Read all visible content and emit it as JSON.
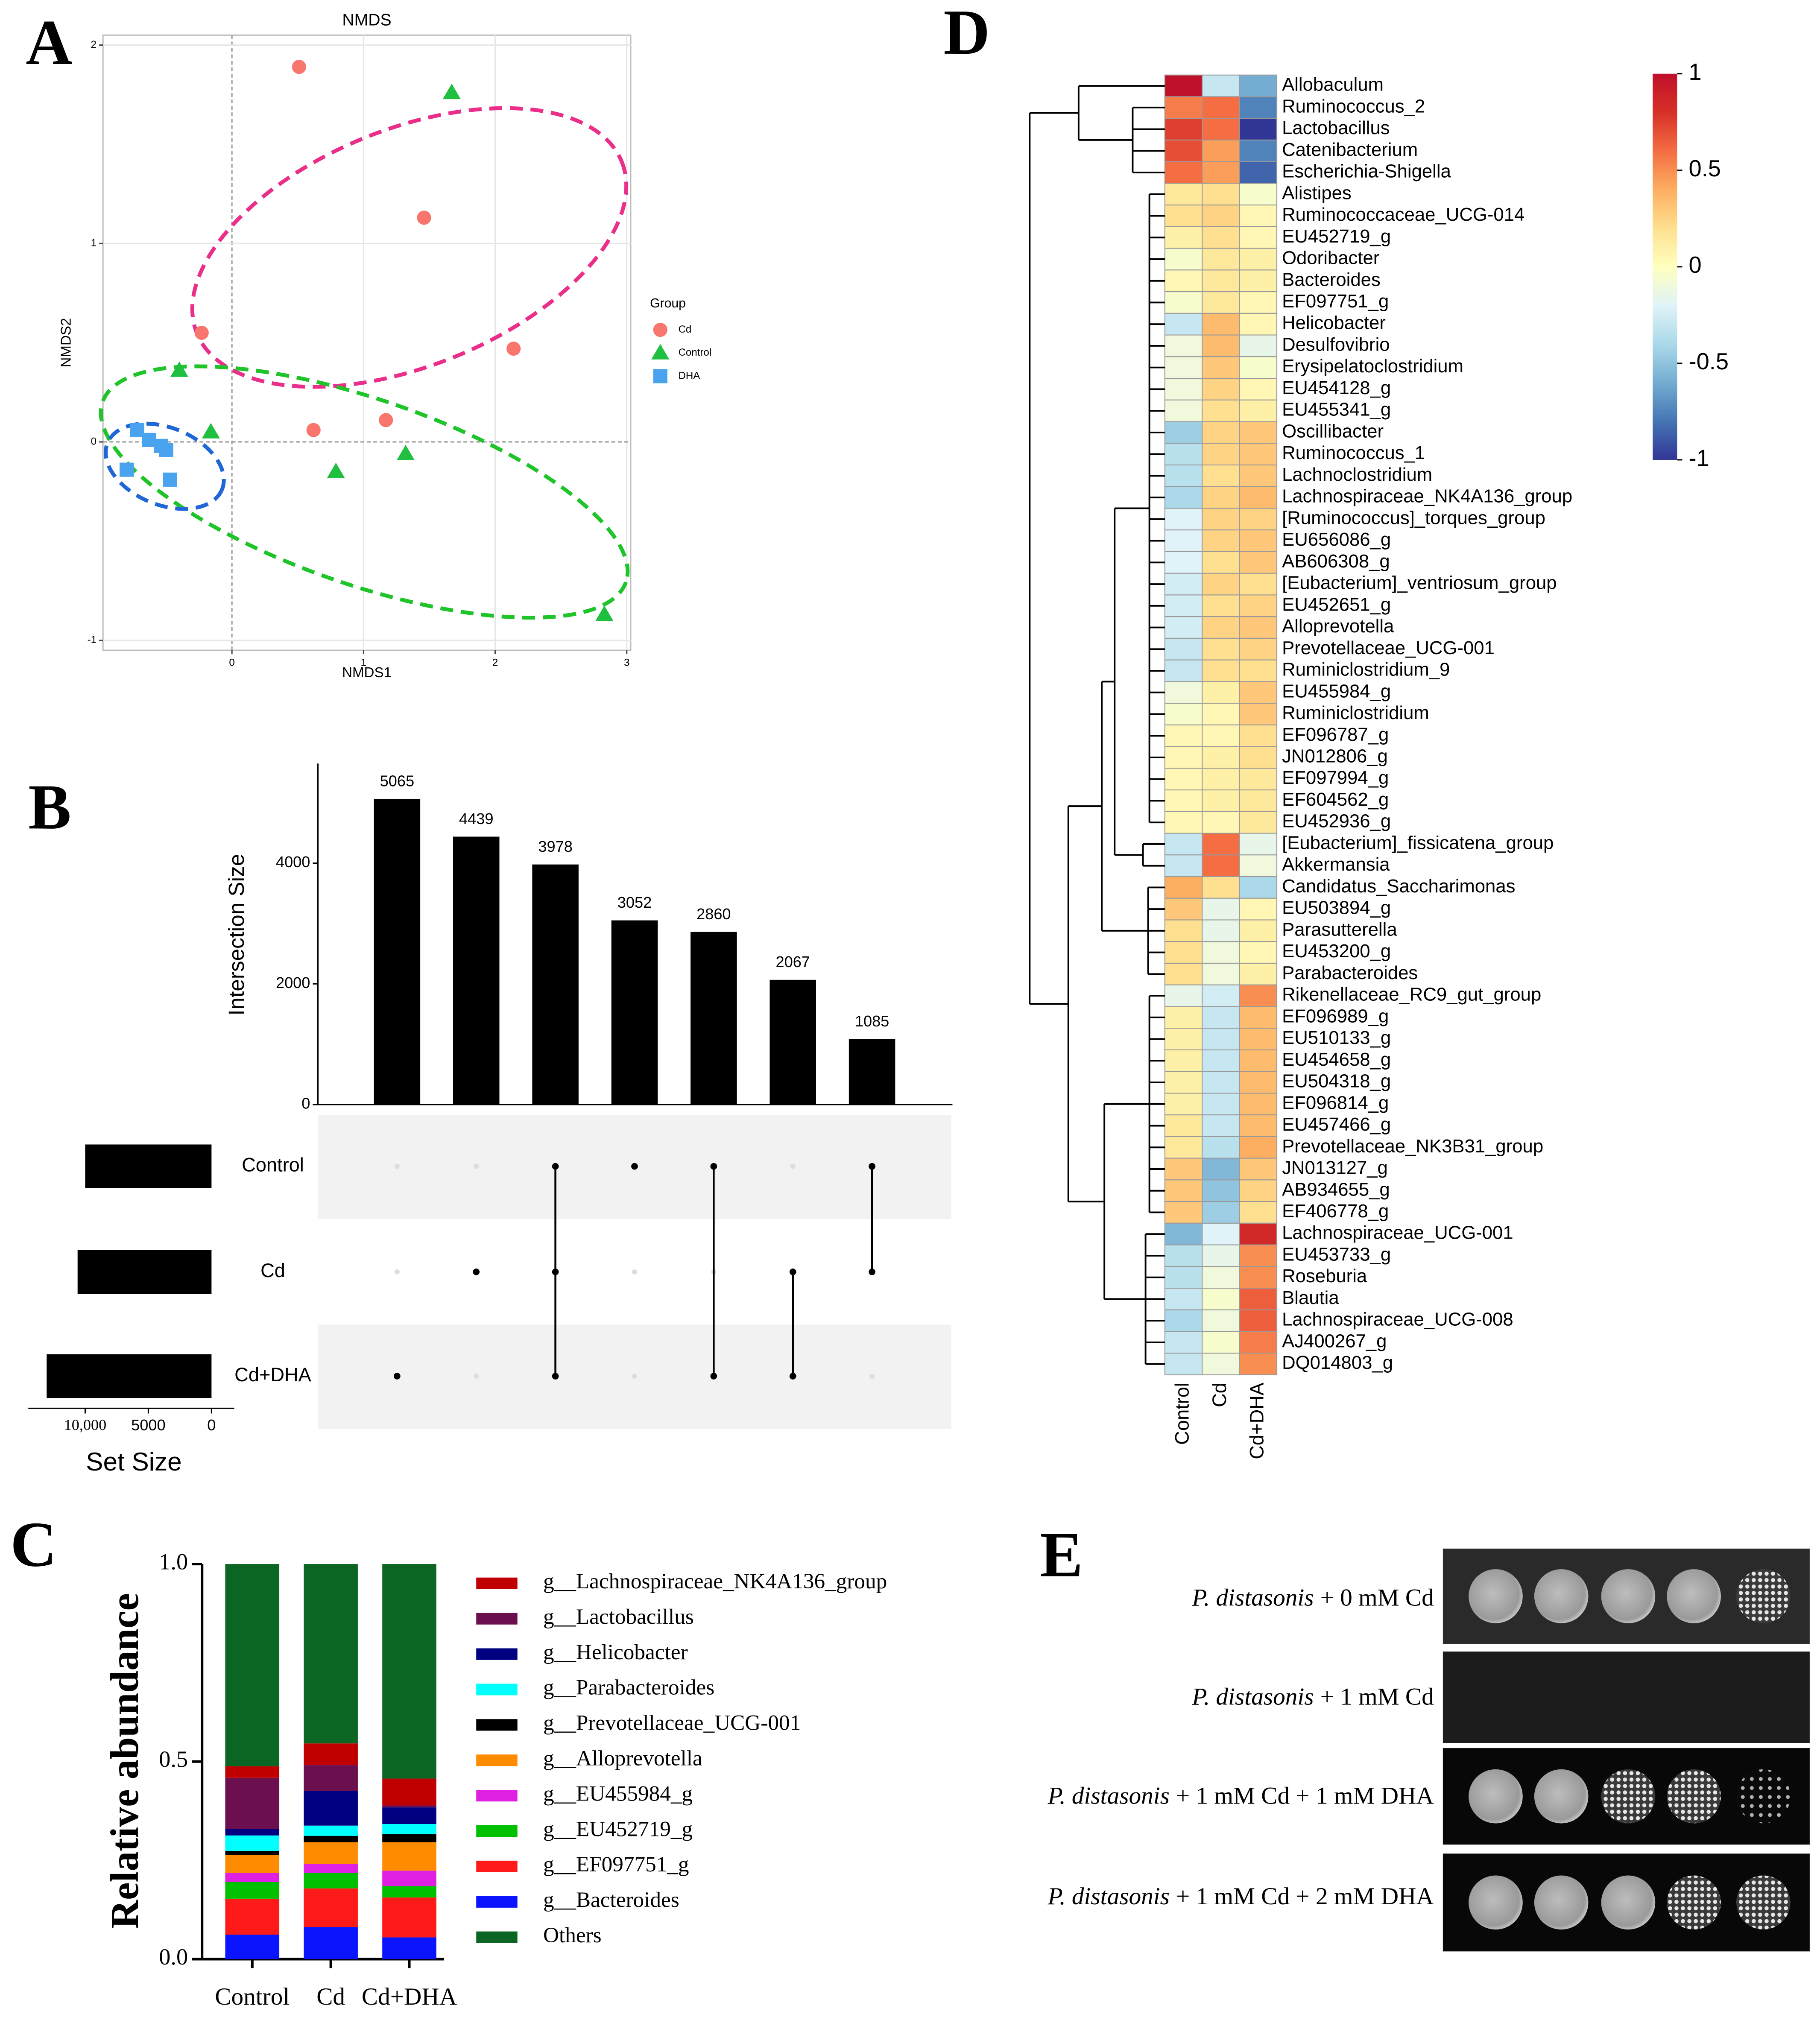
{
  "chart_data": [
    {
      "type": "scatter",
      "panel": "A",
      "title": "NMDS",
      "xlabel": "NMDS1",
      "ylabel": "NMDS2",
      "legend_title": "Group",
      "xlim": [
        -0.98,
        3.03
      ],
      "ylim": [
        -1.05,
        2.05
      ],
      "xticks": [
        0,
        1,
        2,
        3
      ],
      "yticks": [
        -1,
        0,
        1,
        2
      ],
      "grid": true,
      "series": [
        {
          "name": "Cd",
          "color": "#f8766d",
          "marker": "circle",
          "x": [
            0.51,
            1.46,
            -0.23,
            2.14,
            0.62,
            1.17
          ],
          "y": [
            1.89,
            1.13,
            0.55,
            0.47,
            0.06,
            0.11
          ]
        },
        {
          "name": "Control",
          "color": "#1fbf3f",
          "marker": "triangle",
          "x": [
            1.67,
            -0.4,
            -0.16,
            0.79,
            1.32,
            2.83
          ],
          "y": [
            1.76,
            0.36,
            0.05,
            -0.15,
            -0.06,
            -0.87
          ]
        },
        {
          "name": "DHA",
          "color": "#4aa3ee",
          "marker": "square",
          "x": [
            -0.72,
            -0.63,
            -0.54,
            -0.5,
            -0.8,
            -0.47
          ],
          "y": [
            0.06,
            0.01,
            -0.02,
            -0.04,
            -0.14,
            -0.19
          ]
        }
      ]
    },
    {
      "type": "upset",
      "panel": "B",
      "ylabel": "Intersection Size",
      "color": "#000000",
      "values": [
        5065,
        4439,
        3978,
        3052,
        2860,
        2067,
        1085
      ],
      "ylim": [
        0,
        5650
      ],
      "yticks": [
        0,
        2000,
        4000
      ],
      "sets": [
        "Control",
        "Cd",
        "Cd+DHA"
      ],
      "intersections": [
        [
          2
        ],
        [
          1
        ],
        [
          0,
          1,
          2
        ],
        [
          0
        ],
        [
          0,
          2
        ],
        [
          1,
          2
        ],
        [
          0,
          1
        ]
      ],
      "set_sizes": [
        10000,
        10600,
        13050
      ],
      "set_size_label": "Set Size",
      "set_size_lim": [
        -1800,
        14500
      ],
      "set_size_ticks": [
        {
          "value": 10000,
          "label": "10,000"
        },
        5000,
        0
      ]
    },
    {
      "type": "stacked_bar",
      "panel": "C",
      "ylabel": "Relative abundance",
      "categories": [
        "Control",
        "Cd",
        "Cd+DHA"
      ],
      "ylim": [
        0,
        1
      ],
      "yticks": [
        {
          "value": 0,
          "label": "0.0"
        },
        0.5,
        {
          "value": 1,
          "label": "1.0"
        }
      ],
      "series": [
        {
          "name": "g__Lachnospiraceae_NK4A136_group",
          "color": "#c00000",
          "values": [
            0.029,
            0.055,
            0.068
          ]
        },
        {
          "name": "g__Lactobacillus",
          "color": "#6b0f4f",
          "values": [
            0.13,
            0.065,
            0.005
          ]
        },
        {
          "name": "g__Helicobacter",
          "color": "#000080",
          "values": [
            0.016,
            0.088,
            0.042
          ]
        },
        {
          "name": "g__Parabacteroides",
          "color": "#00ffff",
          "values": [
            0.039,
            0.026,
            0.026
          ]
        },
        {
          "name": "g__Prevotellaceae_UCG-001",
          "color": "#000000",
          "values": [
            0.01,
            0.016,
            0.02
          ]
        },
        {
          "name": "g__Alloprevotella",
          "color": "#ff8c00",
          "values": [
            0.046,
            0.055,
            0.072
          ]
        },
        {
          "name": "g__EU455984_g",
          "color": "#e020e0",
          "values": [
            0.023,
            0.023,
            0.039
          ]
        },
        {
          "name": "g__EU452719_g",
          "color": "#00c000",
          "values": [
            0.042,
            0.039,
            0.029
          ]
        },
        {
          "name": "g__EF097751_g",
          "color": "#ff1a1a",
          "values": [
            0.091,
            0.098,
            0.101
          ]
        },
        {
          "name": "g__Bacteroides",
          "color": "#0a14ff",
          "values": [
            0.062,
            0.081,
            0.055
          ]
        },
        {
          "name": "Others",
          "color": "#0b6623",
          "values": [
            0.512,
            0.454,
            0.543
          ]
        }
      ]
    },
    {
      "type": "heatmap",
      "panel": "D",
      "columns": [
        "Control",
        "Cd",
        "Cd+DHA"
      ],
      "rows": [
        "Allobaculum",
        "Ruminococcus_2",
        "Lactobacillus",
        "Catenibacterium",
        "Escherichia-Shigella",
        "Alistipes",
        "Ruminococcaceae_UCG-014",
        "EU452719_g",
        "Odoribacter",
        "Bacteroides",
        "EF097751_g",
        "Helicobacter",
        "Desulfovibrio",
        "Erysipelatoclostridium",
        "EU454128_g",
        "EU455341_g",
        "Oscillibacter",
        "Ruminococcus_1",
        "Lachnoclostridium",
        "Lachnospiraceae_NK4A136_group",
        "[Ruminococcus]_torques_group",
        "EU656086_g",
        "AB606308_g",
        "[Eubacterium]_ventriosum_group",
        "EU452651_g",
        "Alloprevotella",
        "Prevotellaceae_UCG-001",
        "Ruminiclostridium_9",
        "EU455984_g",
        "Ruminiclostridium",
        "EF096787_g",
        "JN012806_g",
        "EF097994_g",
        "EF604562_g",
        "EU452936_g",
        "[Eubacterium]_fissicatena_group",
        "Akkermansia",
        "Candidatus_Saccharimonas",
        "EU503894_g",
        "Parasutterella",
        "EU453200_g",
        "Parabacteroides",
        "Rikenellaceae_RC9_gut_group",
        "EF096989_g",
        "EU510133_g",
        "EU454658_g",
        "EU504318_g",
        "EF096814_g",
        "EU457466_g",
        "Prevotellaceae_NK3B31_group",
        "JN013127_g",
        "AB934655_g",
        "EF406778_g",
        "Lachnospiraceae_UCG-001",
        "EU453733_g",
        "Roseburia",
        "Blautia",
        "Lachnospiraceae_UCG-008",
        "AJ400267_g",
        "DQ014803_g"
      ],
      "values": [
        [
          1,
          -0.3,
          -0.6
        ],
        [
          0.55,
          0.6,
          -0.75
        ],
        [
          0.75,
          0.6,
          -1
        ],
        [
          0.7,
          0.45,
          -0.75
        ],
        [
          0.6,
          0.45,
          -0.85
        ],
        [
          0.15,
          0.2,
          -0.05
        ],
        [
          0.2,
          0.25,
          0.05
        ],
        [
          0.1,
          0.2,
          0.05
        ],
        [
          -0.05,
          0.15,
          0.1
        ],
        [
          0.05,
          0.15,
          0.1
        ],
        [
          -0.05,
          0.15,
          0.05
        ],
        [
          -0.3,
          0.35,
          0.05
        ],
        [
          -0.1,
          0.35,
          -0.15
        ],
        [
          -0.1,
          0.3,
          -0.05
        ],
        [
          -0.1,
          0.25,
          0.05
        ],
        [
          -0.1,
          0.2,
          0.1
        ],
        [
          -0.45,
          0.25,
          0.3
        ],
        [
          -0.35,
          0.25,
          0.3
        ],
        [
          -0.35,
          0.2,
          0.3
        ],
        [
          -0.4,
          0.25,
          0.35
        ],
        [
          -0.2,
          0.25,
          0.25
        ],
        [
          -0.2,
          0.25,
          0.3
        ],
        [
          -0.2,
          0.2,
          0.3
        ],
        [
          -0.25,
          0.25,
          0.2
        ],
        [
          -0.25,
          0.2,
          0.25
        ],
        [
          -0.25,
          0.25,
          0.3
        ],
        [
          -0.3,
          0.2,
          0.25
        ],
        [
          -0.3,
          0.2,
          0.2
        ],
        [
          -0.1,
          0.1,
          0.3
        ],
        [
          -0.05,
          0.05,
          0.3
        ],
        [
          0.05,
          0.05,
          0.2
        ],
        [
          0.05,
          0.1,
          0.2
        ],
        [
          0.05,
          0.1,
          0.15
        ],
        [
          0.05,
          0.1,
          0.15
        ],
        [
          0.05,
          0.05,
          0.15
        ],
        [
          -0.3,
          0.6,
          -0.15
        ],
        [
          -0.3,
          0.6,
          -0.1
        ],
        [
          0.4,
          0.2,
          -0.4
        ],
        [
          0.3,
          -0.15,
          0.05
        ],
        [
          0.2,
          -0.15,
          0.1
        ],
        [
          0.2,
          -0.1,
          0.05
        ],
        [
          0.2,
          -0.1,
          0.1
        ],
        [
          -0.15,
          -0.25,
          0.5
        ],
        [
          0.1,
          -0.3,
          0.35
        ],
        [
          0.1,
          -0.3,
          0.35
        ],
        [
          0.1,
          -0.3,
          0.35
        ],
        [
          0.1,
          -0.3,
          0.35
        ],
        [
          0.1,
          -0.3,
          0.35
        ],
        [
          0.15,
          -0.3,
          0.35
        ],
        [
          0.15,
          -0.35,
          0.4
        ],
        [
          0.3,
          -0.55,
          0.3
        ],
        [
          0.3,
          -0.5,
          0.25
        ],
        [
          0.3,
          -0.45,
          0.2
        ],
        [
          -0.55,
          -0.2,
          0.85
        ],
        [
          -0.35,
          -0.15,
          0.5
        ],
        [
          -0.35,
          -0.1,
          0.5
        ],
        [
          -0.3,
          -0.05,
          0.65
        ],
        [
          -0.4,
          -0.1,
          0.65
        ],
        [
          -0.3,
          -0.05,
          0.55
        ],
        [
          -0.3,
          -0.1,
          0.5
        ]
      ],
      "zlim": [
        -1,
        1
      ],
      "colorbar_ticks": [
        1,
        0.5,
        0,
        -0.5,
        -1
      ],
      "colorscale": [
        "#313695",
        "#4575b4",
        "#74add1",
        "#abd9e9",
        "#e0f3f8",
        "#ffffbf",
        "#fee090",
        "#fdae61",
        "#f46d43",
        "#d73027",
        "#c0102a"
      ]
    }
  ],
  "spot_assay": {
    "panel": "E",
    "rows": [
      {
        "organism": "P. distasonis",
        "condition": "+ 0 mM Cd"
      },
      {
        "organism": "P. distasonis",
        "condition": "+ 1 mM Cd"
      },
      {
        "organism": "P. distasonis",
        "condition": "+ 1 mM Cd + 1 mM DHA"
      },
      {
        "organism": "P. distasonis",
        "condition": "+ 1 mM Cd + 2 mM DHA"
      }
    ]
  }
}
